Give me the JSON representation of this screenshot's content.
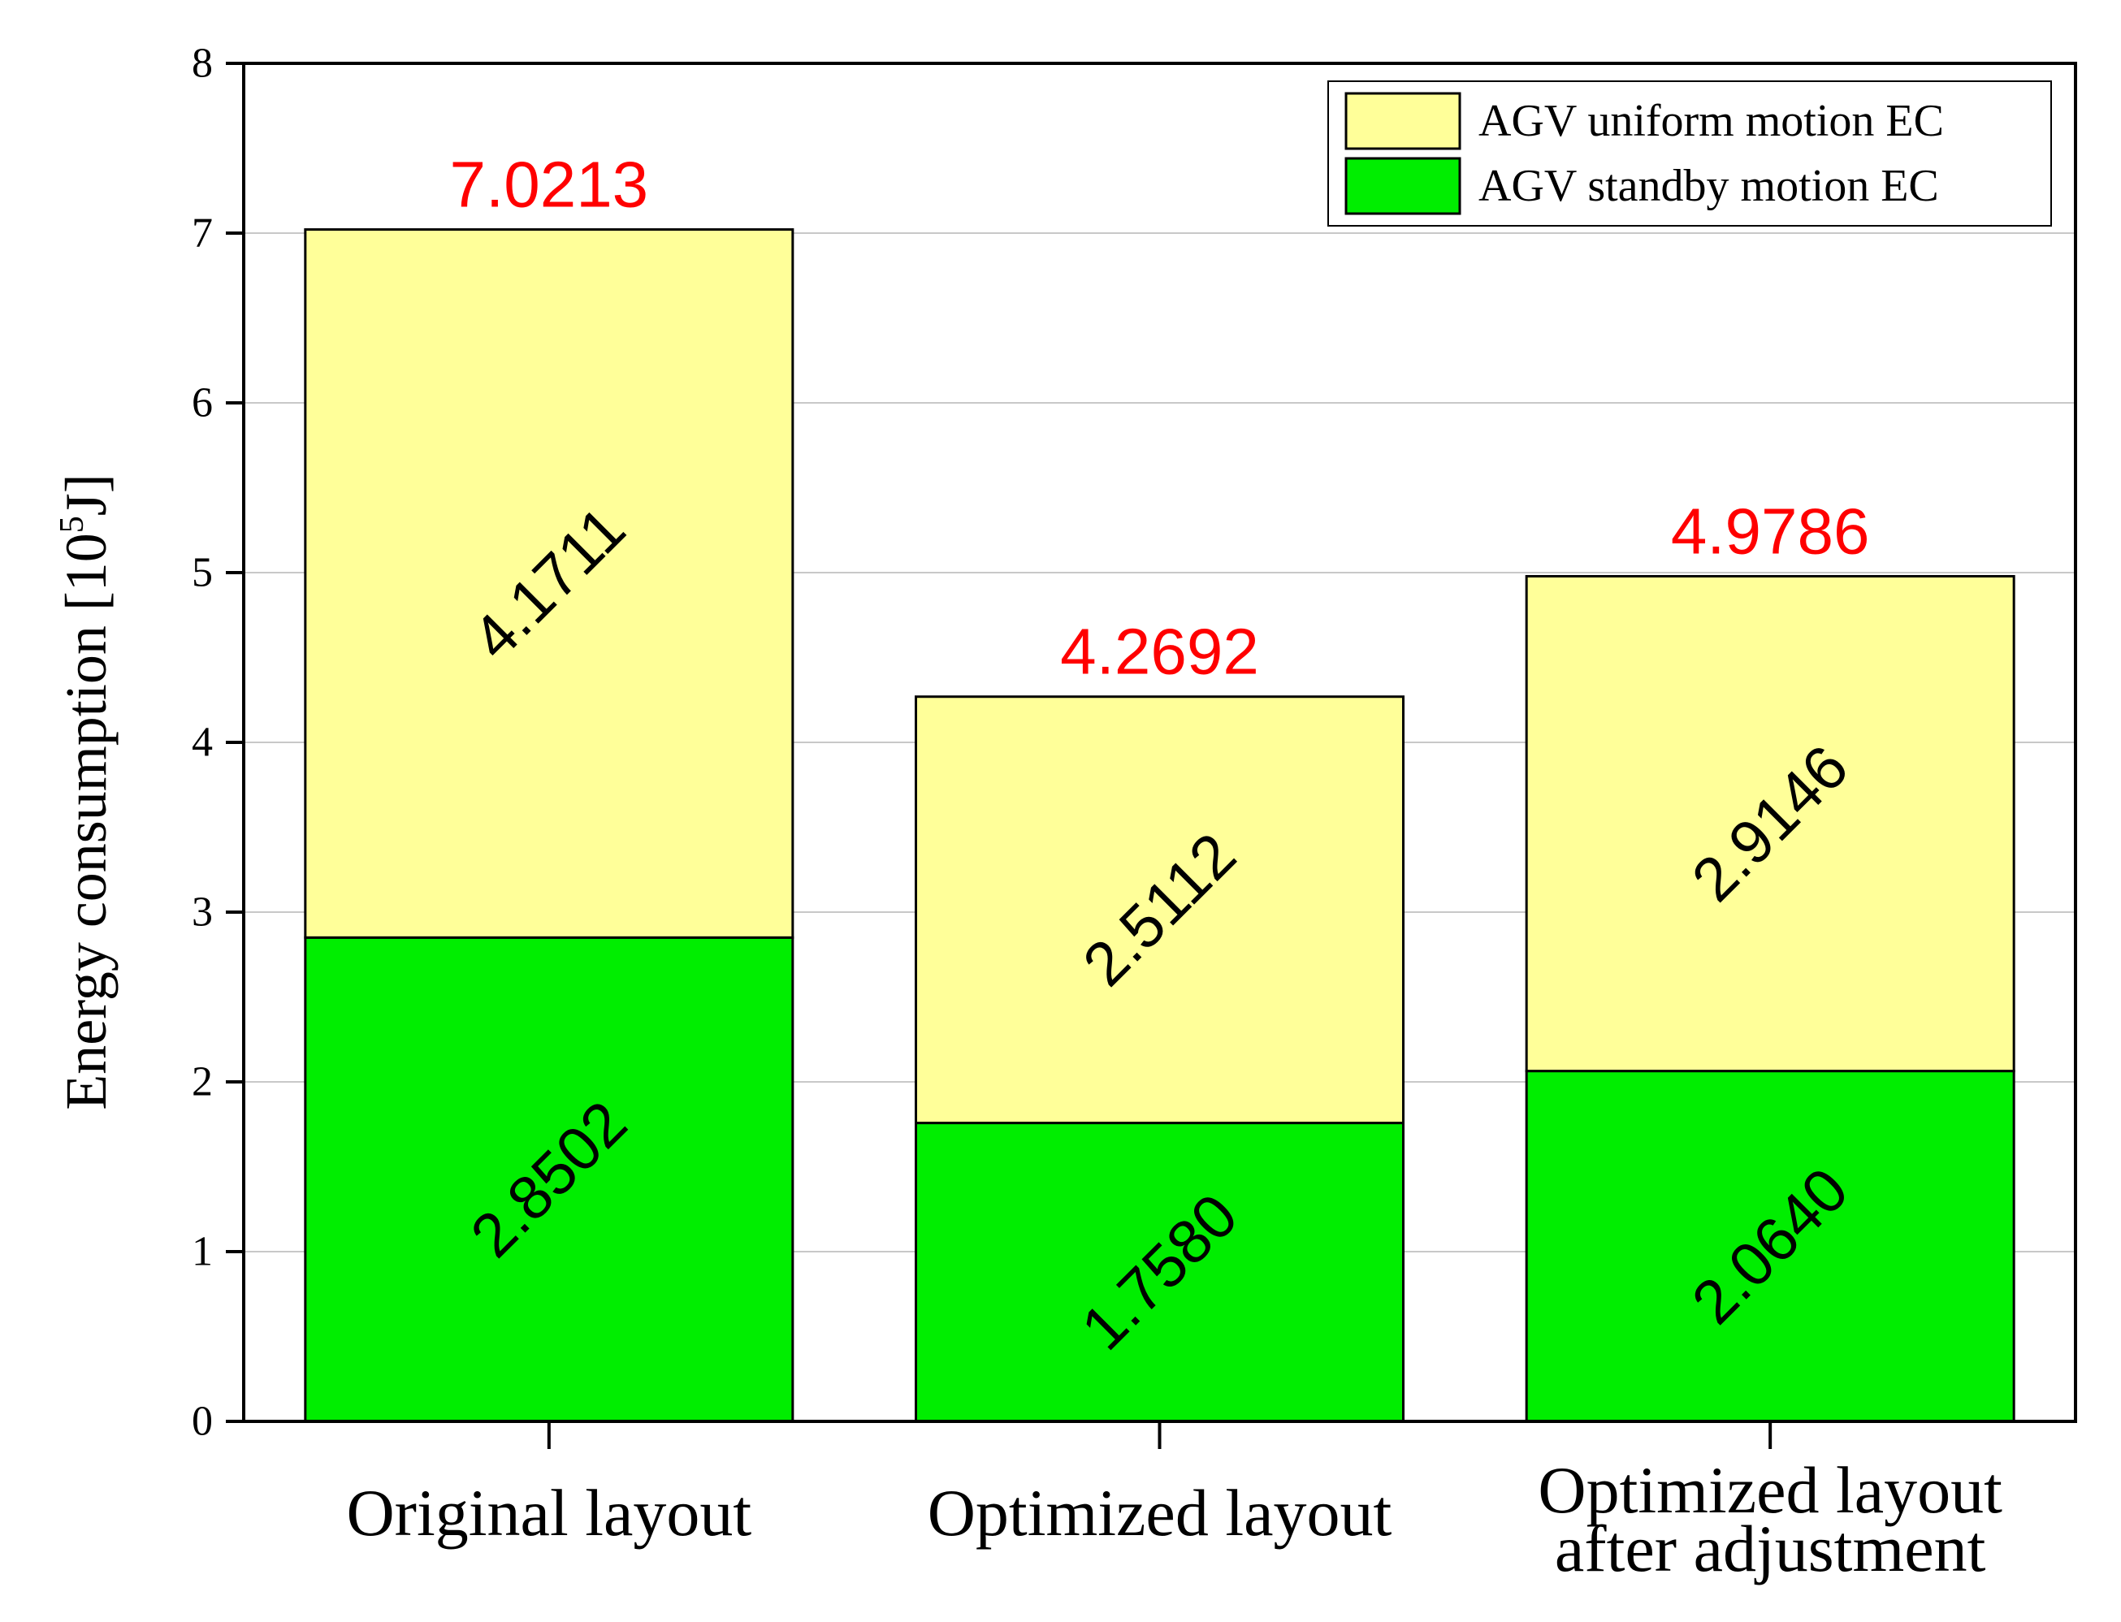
{
  "chart_data": {
    "type": "bar",
    "stacked": true,
    "categories": [
      [
        "Original layout"
      ],
      [
        "Optimized layout"
      ],
      [
        "Optimized layout",
        "after adjustment"
      ]
    ],
    "series": [
      {
        "name": "AGV standby motion EC",
        "values": [
          2.8502,
          1.758,
          2.064
        ],
        "labels": [
          "2.8502",
          "1.7580",
          "2.0640"
        ],
        "color": "#00ee00"
      },
      {
        "name": "AGV uniform motion EC",
        "values": [
          4.1711,
          2.5112,
          2.9146
        ],
        "labels": [
          "4.1711",
          "2.5112",
          "2.9146"
        ],
        "color": "#ffff99"
      }
    ],
    "totals": [
      7.0213,
      4.2692,
      4.9786
    ],
    "total_labels": [
      "7.0213",
      "4.2692",
      "4.9786"
    ],
    "total_color": "#ff0000",
    "ylabel": "Energy consumption [10^5J]",
    "ylabel_parts": {
      "before": "Energy consumption [10",
      "sup": "5",
      "after": "J]"
    },
    "xlabel": "",
    "ylim": [
      0,
      8
    ],
    "yticks": [
      "0",
      "1",
      "2",
      "3",
      "4",
      "5",
      "6",
      "7",
      "8"
    ],
    "grid": true,
    "legend_position": "top-right",
    "legend_order": [
      "AGV uniform motion EC",
      "AGV standby motion EC"
    ]
  }
}
